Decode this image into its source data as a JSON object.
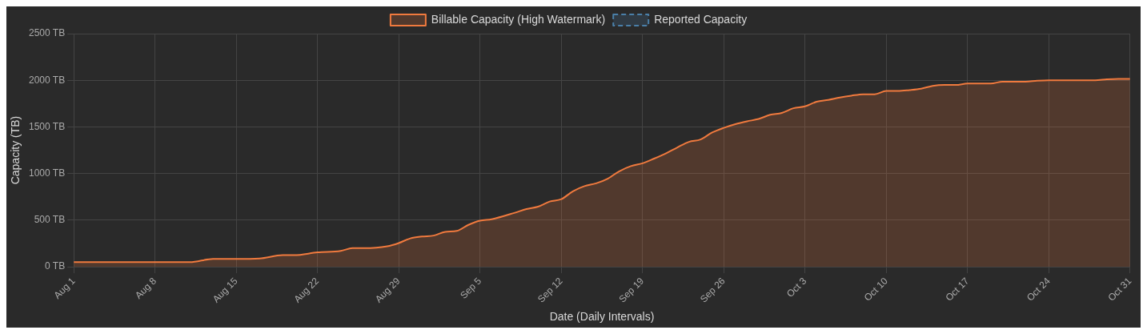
{
  "chart_data": {
    "type": "area",
    "xlabel": "Date (Daily Intervals)",
    "ylabel": "Capacity (TB)",
    "x": [
      "--08-01",
      "--08-11",
      "--08-13",
      "--08-15",
      "--08-17",
      "--08-19",
      "--08-20",
      "--08-22",
      "--08-24",
      "--08-25",
      "--08-26",
      "--08-28",
      "--08-29",
      "--08-30",
      "--08-31",
      "--09-01",
      "--09-02",
      "--09-03",
      "--09-04",
      "--09-05",
      "--09-06",
      "--09-08",
      "--09-09",
      "--09-10",
      "--09-11",
      "--09-12",
      "--09-13",
      "--09-14",
      "--09-15",
      "--09-16",
      "--09-17",
      "--09-18",
      "--09-19",
      "--09-20",
      "--09-21",
      "--09-22",
      "--09-23",
      "--09-24",
      "--09-25",
      "--09-26",
      "--09-27",
      "--09-28",
      "--09-29",
      "--09-30",
      "--10-01",
      "--10-02",
      "--10-03",
      "--10-04",
      "--10-05",
      "--10-06",
      "--10-07",
      "--10-08",
      "--10-09",
      "--10-10",
      "--10-11",
      "--10-12",
      "--10-13",
      "--10-14",
      "--10-15",
      "--10-16",
      "--10-17",
      "--10-19",
      "--10-20",
      "--10-22",
      "--10-23",
      "--10-24",
      "--10-28",
      "--10-29",
      "--10-30",
      "--10-31"
    ],
    "series": [
      {
        "name": "Billable Capacity (High Watermark)",
        "color": "#f07a3e",
        "values": [
          50,
          50,
          85,
          85,
          90,
          125,
          125,
          155,
          170,
          200,
          200,
          220,
          255,
          305,
          325,
          335,
          375,
          385,
          450,
          495,
          510,
          580,
          620,
          645,
          700,
          725,
          810,
          865,
          895,
          945,
          1025,
          1080,
          1110,
          1160,
          1215,
          1280,
          1340,
          1365,
          1440,
          1490,
          1530,
          1560,
          1585,
          1630,
          1650,
          1700,
          1720,
          1770,
          1790,
          1815,
          1835,
          1850,
          1850,
          1885,
          1885,
          1895,
          1910,
          1940,
          1950,
          1950,
          1965,
          1965,
          1985,
          1985,
          1995,
          2000,
          2000,
          2010,
          2015,
          2015
        ]
      },
      {
        "name": "Reported Capacity",
        "color": "#4a7fa8",
        "line_style": "dashed",
        "values": [
          null,
          null,
          null,
          null,
          null,
          null,
          null,
          null,
          null,
          null,
          null,
          null,
          null,
          null,
          null,
          null,
          null,
          null,
          null,
          null,
          null,
          null,
          null,
          null,
          null,
          null,
          null,
          null,
          null,
          null,
          null,
          null,
          null,
          null,
          null,
          null,
          null,
          null,
          null,
          null,
          null,
          null,
          null,
          null,
          null,
          null,
          null,
          null,
          null,
          null,
          null,
          null,
          null,
          null,
          null,
          null,
          null,
          null,
          null,
          null,
          null,
          null,
          null,
          null,
          null,
          null,
          null,
          null,
          null,
          null
        ]
      }
    ],
    "xlim": [
      "--08-01",
      "--10-31"
    ],
    "xticks": [
      {
        "value": "--08-01",
        "label": "Aug 1"
      },
      {
        "value": "--08-08",
        "label": "Aug 8"
      },
      {
        "value": "--08-15",
        "label": "Aug 15"
      },
      {
        "value": "--08-22",
        "label": "Aug 22"
      },
      {
        "value": "--08-29",
        "label": "Aug 29"
      },
      {
        "value": "--09-05",
        "label": "Sep 5"
      },
      {
        "value": "--09-12",
        "label": "Sep 12"
      },
      {
        "value": "--09-19",
        "label": "Sep 19"
      },
      {
        "value": "--09-26",
        "label": "Sep 26"
      },
      {
        "value": "--10-03",
        "label": "Oct 3"
      },
      {
        "value": "--10-10",
        "label": "Oct 10"
      },
      {
        "value": "--10-17",
        "label": "Oct 17"
      },
      {
        "value": "--10-24",
        "label": "Oct 24"
      },
      {
        "value": "--10-31",
        "label": "Oct 31"
      }
    ],
    "ylim": [
      0,
      2500
    ],
    "yticks": [
      {
        "value": 0,
        "label": "0 TB"
      },
      {
        "value": 500,
        "label": "500 TB"
      },
      {
        "value": 1000,
        "label": "1000 TB"
      },
      {
        "value": 1500,
        "label": "1500 TB"
      },
      {
        "value": 2000,
        "label": "2000 TB"
      },
      {
        "value": 2500,
        "label": "2500 TB"
      }
    ],
    "grid": true,
    "legend": "top",
    "marker": "none"
  }
}
